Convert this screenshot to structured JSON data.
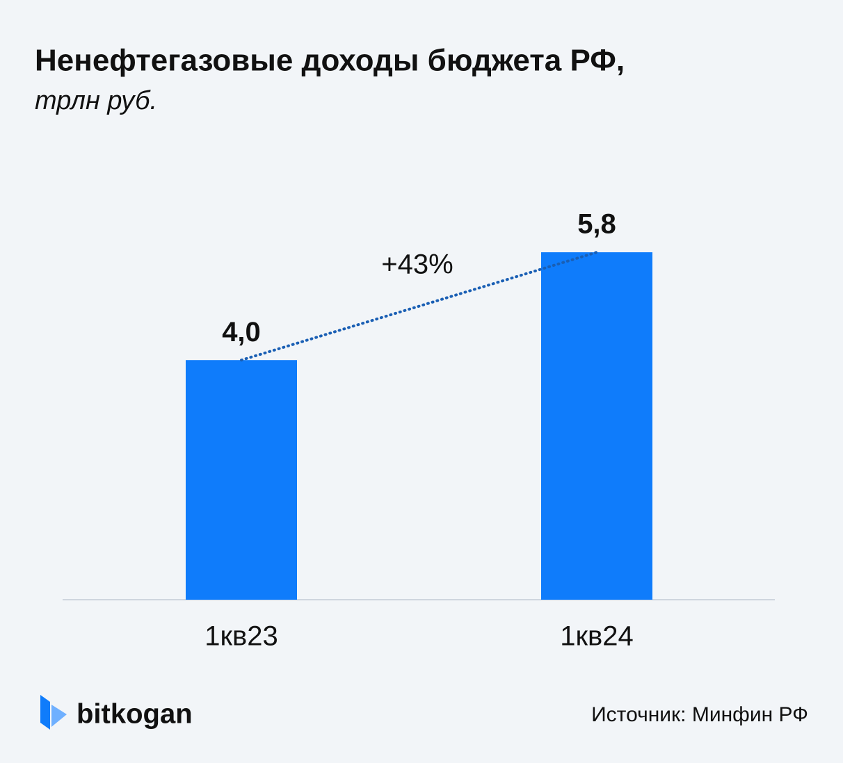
{
  "chart_data": {
    "type": "bar",
    "title": "Ненефтегазовые доходы бюджета РФ,",
    "subtitle": "трлн руб.",
    "categories": [
      "1кв23",
      "1кв24"
    ],
    "values": [
      4.0,
      5.8
    ],
    "value_labels": [
      "4,0",
      "5,8"
    ],
    "color": "#0f7cfb",
    "annotation": "+43%"
  },
  "footer": {
    "logo": "bitkogan",
    "source": "Источник: Минфин РФ"
  }
}
